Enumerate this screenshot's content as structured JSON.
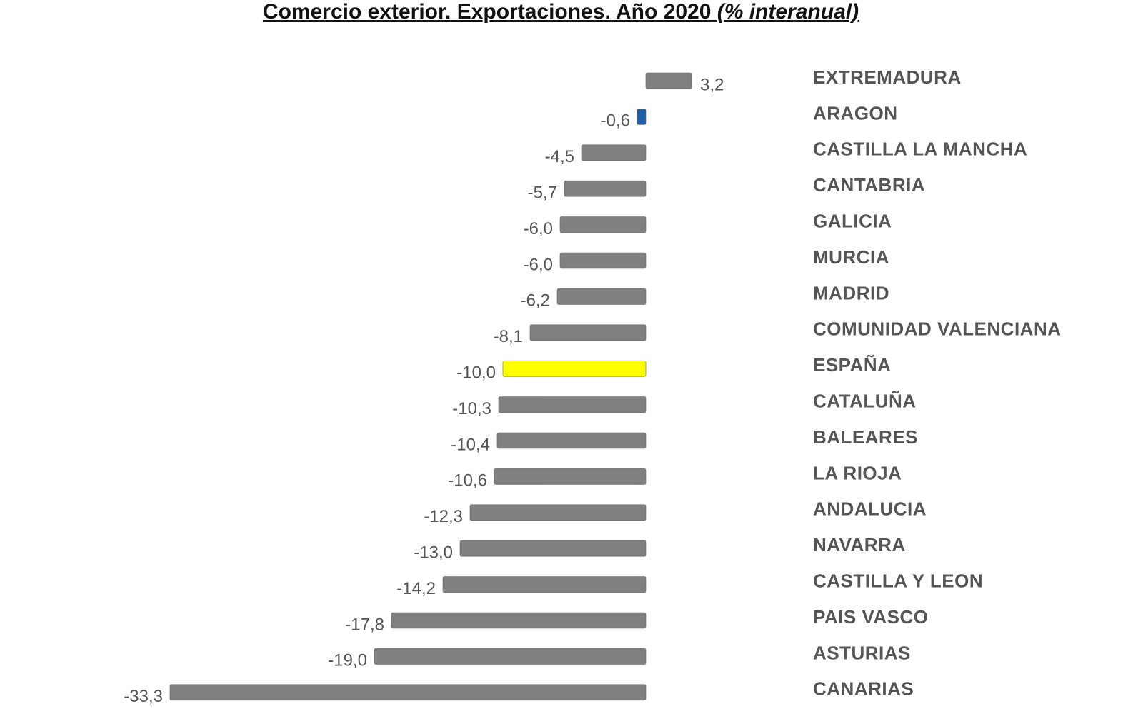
{
  "chart_data": {
    "type": "bar",
    "orientation": "horizontal",
    "title": "Comercio exterior. Exportaciones. Año 2020",
    "subtitle": "(% interanual)",
    "categories": [
      "EXTREMADURA",
      "ARAGON",
      "CASTILLA LA MANCHA",
      "CANTABRIA",
      "GALICIA",
      "MURCIA",
      "MADRID",
      "COMUNIDAD VALENCIANA",
      "ESPAÑA",
      "CATALUÑA",
      "BALEARES",
      "LA RIOJA",
      "ANDALUCIA",
      "NAVARRA",
      "CASTILLA Y LEON",
      "PAIS VASCO",
      "ASTURIAS",
      "CANARIAS"
    ],
    "values": [
      3.2,
      -0.6,
      -4.5,
      -5.7,
      -6.0,
      -6.0,
      -6.2,
      -8.1,
      -10.0,
      -10.3,
      -10.4,
      -10.6,
      -12.3,
      -13.0,
      -14.2,
      -17.8,
      -19.0,
      -33.3
    ],
    "value_labels": [
      "3,2",
      "-0,6",
      "-4,5",
      "-5,7",
      "-6,0",
      "-6,0",
      "-6,2",
      "-8,1",
      "-10,0",
      "-10,3",
      "-10,4",
      "-10,6",
      "-12,3",
      "-13,0",
      "-14,2",
      "-17,8",
      "-19,0",
      "-33,3"
    ],
    "colors": [
      "#808080",
      "#1f5fa8",
      "#808080",
      "#808080",
      "#808080",
      "#808080",
      "#808080",
      "#808080",
      "#ffff00",
      "#808080",
      "#808080",
      "#808080",
      "#808080",
      "#808080",
      "#808080",
      "#808080",
      "#808080",
      "#808080"
    ]
  }
}
